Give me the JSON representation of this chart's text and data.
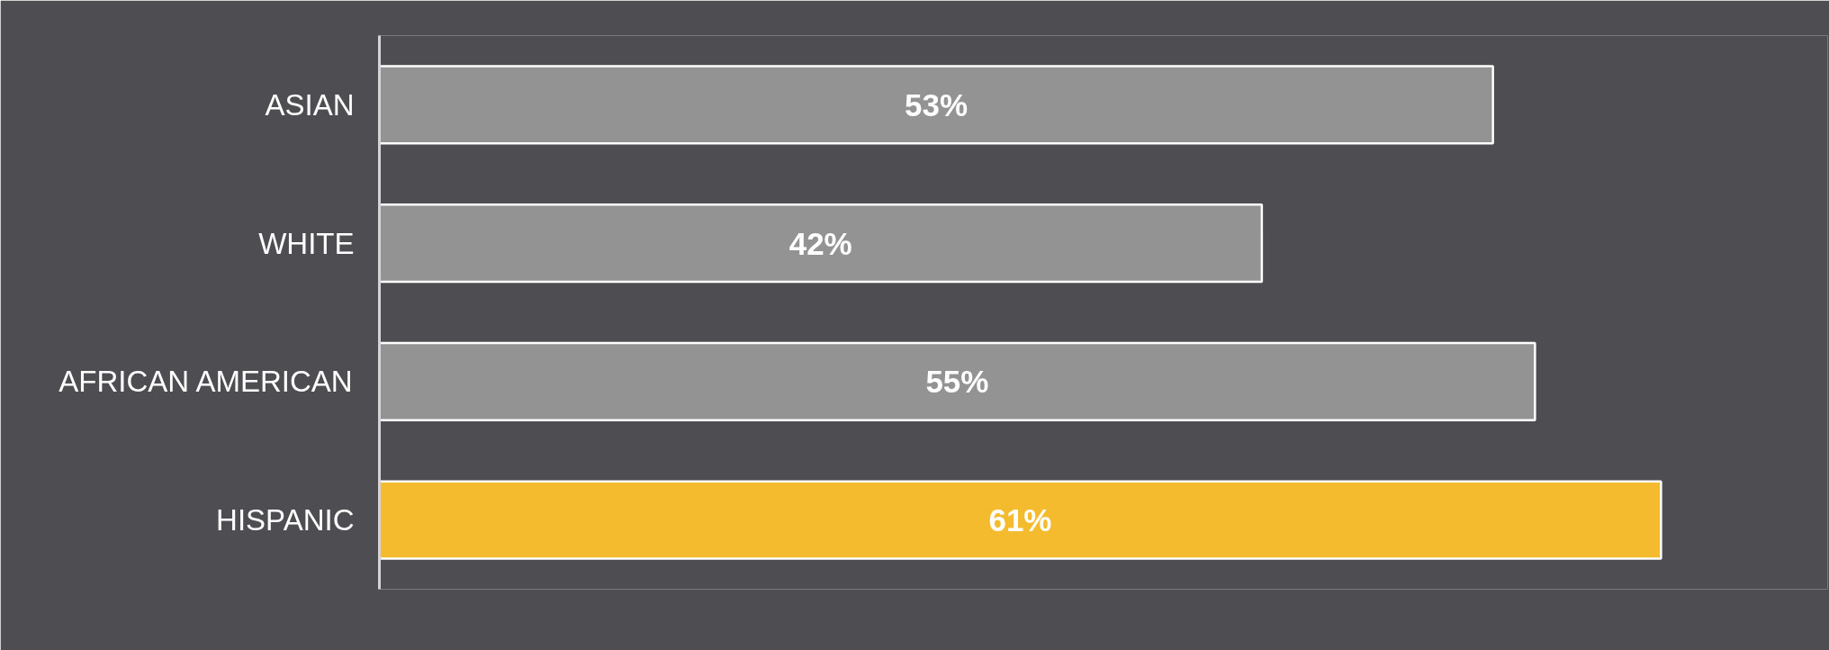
{
  "chart_data": {
    "type": "bar",
    "orientation": "horizontal",
    "categories": [
      "ASIAN",
      "WHITE",
      "AFRICAN AMERICAN",
      "HISPANIC"
    ],
    "values": [
      53,
      42,
      55,
      61
    ],
    "colors": [
      "#939393",
      "#939393",
      "#939393",
      "#f4bb2e"
    ],
    "value_labels": [
      "53%",
      "42%",
      "55%",
      "61%"
    ],
    "tick_labels": "y"
  }
}
